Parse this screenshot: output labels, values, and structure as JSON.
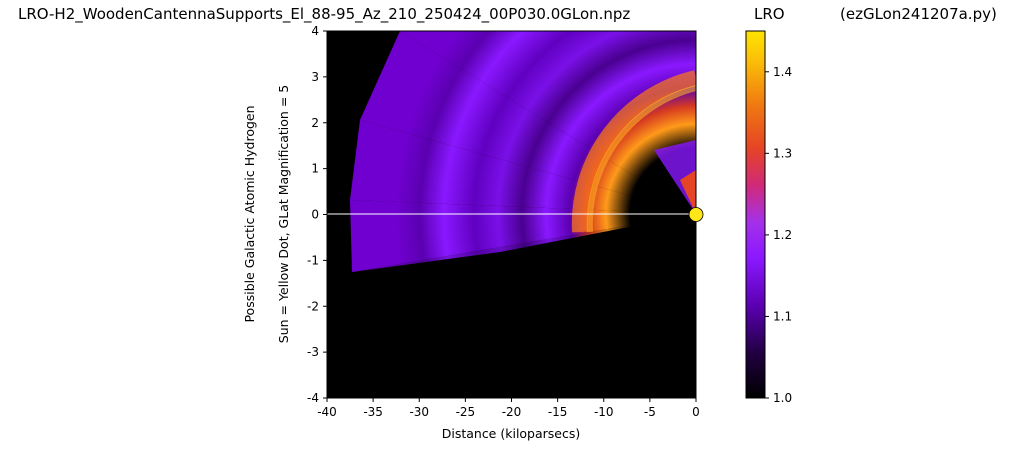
{
  "titles": {
    "left": "LRO-H2_WoodenCantennaSupports_El_88-95_Az_210_250424_00P030.0GLon.npz",
    "colorbar": "LRO",
    "right": "(ezGLon241207a.py)"
  },
  "chart_data": {
    "type": "heatmap",
    "title": "LRO-H2_WoodenCantennaSupports_El_88-95_Az_210_250424_00P030.0GLon.npz",
    "xlabel": "Distance (kiloparsecs)",
    "ylabel": "Possible Galactic Atomic Hydrogen",
    "ylabel2": "Sun = Yellow Dot, GLat Magnification = 5",
    "xlim": [
      -40,
      0
    ],
    "ylim": [
      -4,
      4
    ],
    "x_ticks": [
      "-40",
      "-35",
      "-30",
      "-25",
      "-20",
      "-15",
      "-10",
      "-5",
      "0"
    ],
    "y_ticks": [
      "4",
      "3",
      "2",
      "1",
      "0",
      "-1",
      "-2",
      "-3",
      "-4"
    ],
    "colorbar": {
      "label": "LRO",
      "range": [
        1.0,
        1.45
      ],
      "ticks": [
        "1.0",
        "1.1",
        "1.2",
        "1.3",
        "1.4"
      ],
      "colormap": "gnuplot2"
    },
    "sun": {
      "x": 0,
      "y": 0,
      "color": "#ffe619"
    },
    "reference_line_y": 0,
    "colors": {
      "background": "#000000",
      "low": "#6a00d8",
      "mid": "#8b1cff",
      "high": "#e0541f",
      "peak": "#ffd800"
    }
  }
}
